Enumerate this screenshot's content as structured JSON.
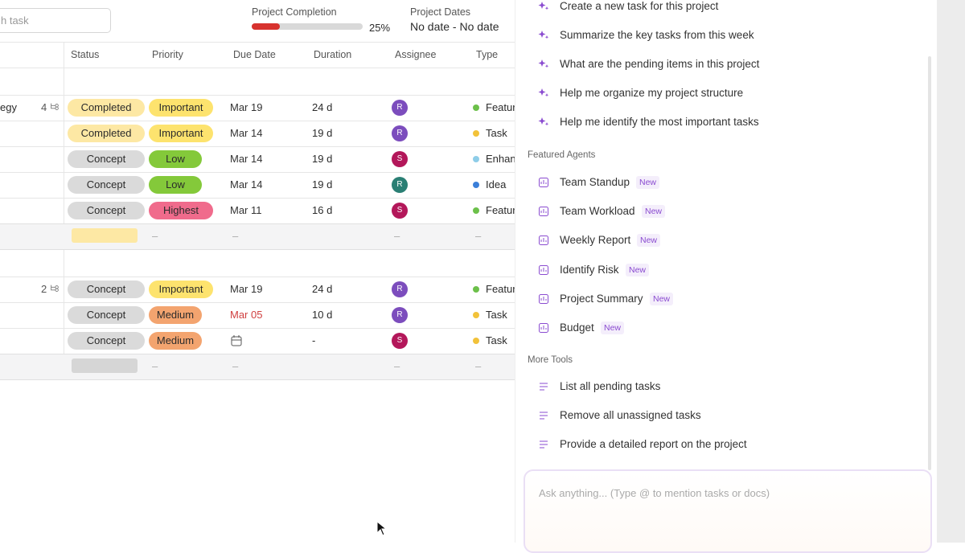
{
  "header": {
    "search_placeholder": "h task",
    "completion_label": "Project Completion",
    "completion_value": "25%",
    "dates_label": "Project Dates",
    "dates_value": "No date - No date"
  },
  "table": {
    "columns": [
      "Status",
      "Priority",
      "Due Date",
      "Duration",
      "Assignee",
      "Type"
    ],
    "groups": [
      {
        "rows": [
          {
            "name": "egy",
            "subtasks": "4",
            "status": "Completed",
            "priority": "Important",
            "due_date": "Mar 19",
            "duration": "24 d",
            "assignee": "R",
            "assignee_color": "#7c4dbd",
            "type": "Featur",
            "type_color": "#6cc04a"
          },
          {
            "status": "Completed",
            "priority": "Important",
            "due_date": "Mar 14",
            "duration": "19 d",
            "assignee": "R",
            "assignee_color": "#7c4dbd",
            "type": "Task",
            "type_color": "#f2c23a"
          },
          {
            "status": "Concept",
            "priority": "Low",
            "due_date": "Mar 14",
            "duration": "19 d",
            "assignee": "S",
            "assignee_color": "#b3175a",
            "type": "Enhan",
            "type_color": "#8ecde8"
          },
          {
            "status": "Concept",
            "priority": "Low",
            "due_date": "Mar 14",
            "duration": "19 d",
            "assignee": "R",
            "assignee_color": "#2a7f74",
            "type": "Idea",
            "type_color": "#3b7fd9"
          },
          {
            "status": "Concept",
            "priority": "Highest",
            "due_date": "Mar 11",
            "duration": "16 d",
            "assignee": "S",
            "assignee_color": "#b3175a",
            "type": "Featur",
            "type_color": "#6cc04a"
          }
        ],
        "add_row": [
          "–",
          "–",
          "–",
          "–"
        ]
      },
      {
        "rows": [
          {
            "subtasks": "2",
            "status": "Concept",
            "priority": "Important",
            "due_date": "Mar 19",
            "duration": "24 d",
            "assignee": "R",
            "assignee_color": "#7c4dbd",
            "type": "Featur",
            "type_color": "#6cc04a"
          },
          {
            "status": "Concept",
            "priority": "Medium",
            "due_date": "Mar 05",
            "due_overdue": true,
            "duration": "10 d",
            "assignee": "R",
            "assignee_color": "#7c4dbd",
            "type": "Task",
            "type_color": "#f2c23a"
          },
          {
            "status": "Concept",
            "priority": "Medium",
            "duration": "-",
            "assignee": "S",
            "assignee_color": "#b3175a",
            "type": "Task",
            "type_color": "#f2c23a"
          }
        ],
        "add_row": [
          "–",
          "–",
          "–",
          "–"
        ]
      }
    ]
  },
  "panel": {
    "suggestions": [
      "Create a new task for this project",
      "Summarize the key tasks from this week",
      "What are the pending items in this project",
      "Help me organize my project structure",
      "Help me identify the most important tasks"
    ],
    "featured_heading": "Featured Agents",
    "agents": [
      {
        "label": "Team Standup",
        "badge": "New"
      },
      {
        "label": "Team Workload",
        "badge": "New"
      },
      {
        "label": "Weekly Report",
        "badge": "New"
      },
      {
        "label": "Identify Risk",
        "badge": "New"
      },
      {
        "label": "Project Summary",
        "badge": "New"
      },
      {
        "label": "Budget",
        "badge": "New"
      }
    ],
    "tools_heading": "More Tools",
    "tools": [
      "List all pending tasks",
      "Remove all unassigned tasks",
      "Provide a detailed report on the project"
    ],
    "input_placeholder": "Ask anything... (Type @ to mention tasks or docs)"
  }
}
